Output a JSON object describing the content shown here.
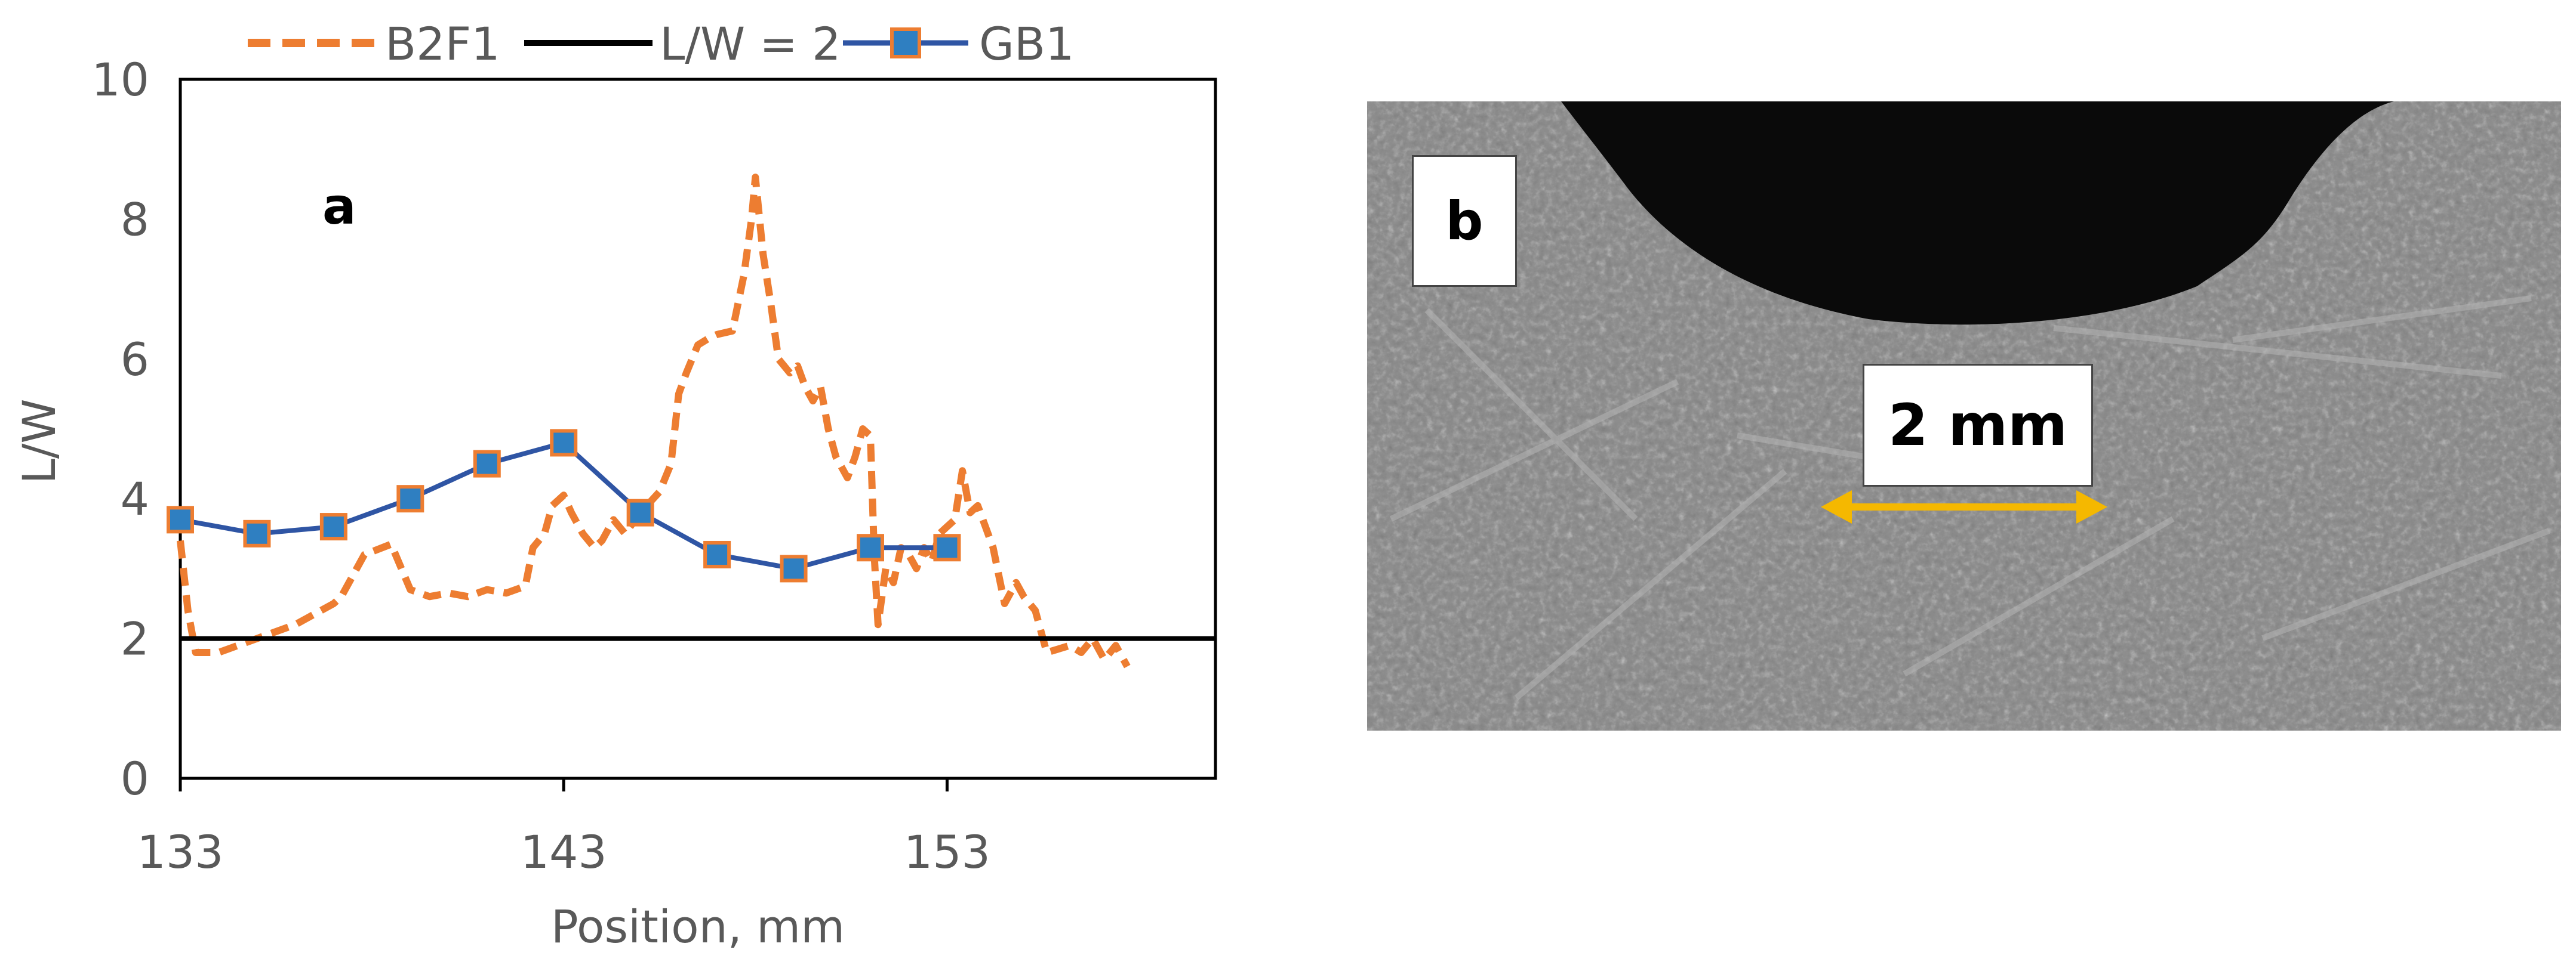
{
  "chart_data": {
    "type": "line",
    "panel_label": "a",
    "xlabel": "Position, mm",
    "ylabel": "L/W",
    "xlim": [
      133,
      160
    ],
    "ylim": [
      0,
      10
    ],
    "x_ticks": [
      133,
      143,
      153
    ],
    "y_ticks": [
      0,
      2,
      4,
      6,
      8,
      10
    ],
    "grid": false,
    "legend_position": "top",
    "series": [
      {
        "name": "B2F1",
        "style": "dashed",
        "color": "#ED7D31",
        "x": [
          133,
          133.2,
          133.4,
          134,
          135,
          136,
          137,
          137.2,
          137.8,
          138.5,
          139,
          139.5,
          140,
          140.5,
          141,
          141.5,
          142,
          142.2,
          142.5,
          142.7,
          143,
          143.2,
          143.5,
          143.8,
          144,
          144.3,
          144.6,
          145,
          145.5,
          145.8,
          146,
          146.2,
          146.5,
          146.8,
          147,
          147.4,
          147.7,
          147.9,
          148,
          148.2,
          148.4,
          148.6,
          148.9,
          149.1,
          149.3,
          149.5,
          149.7,
          149.9,
          150.1,
          150.4,
          150.6,
          150.8,
          151,
          151.1,
          151.2,
          151.4,
          151.6,
          151.8,
          152,
          152.2,
          152.4,
          152.6,
          152.8,
          153,
          153.2,
          153.4,
          153.6,
          153.8,
          154,
          154.2,
          154.5,
          154.8,
          155,
          155.3,
          155.6,
          155.9,
          156.2,
          156.5,
          156.8,
          157.1,
          157.4,
          157.7
        ],
        "y": [
          3.4,
          2.4,
          1.8,
          1.8,
          2.0,
          2.2,
          2.5,
          2.6,
          3.2,
          3.35,
          2.7,
          2.6,
          2.65,
          2.6,
          2.7,
          2.65,
          2.75,
          3.3,
          3.5,
          3.9,
          4.05,
          3.8,
          3.5,
          3.3,
          3.4,
          3.7,
          3.5,
          3.8,
          4.1,
          4.5,
          5.5,
          5.8,
          6.2,
          6.3,
          6.35,
          6.4,
          7.2,
          8.0,
          8.6,
          7.5,
          6.8,
          6.0,
          5.8,
          5.9,
          5.6,
          5.4,
          5.6,
          5.0,
          4.6,
          4.3,
          4.6,
          5.0,
          4.9,
          3.2,
          2.2,
          3.0,
          2.8,
          3.3,
          3.2,
          3.0,
          3.3,
          3.1,
          3.5,
          3.6,
          3.7,
          4.4,
          3.8,
          3.9,
          3.6,
          3.3,
          2.5,
          2.8,
          2.6,
          2.4,
          1.8,
          1.85,
          1.9,
          1.8,
          2.0,
          1.7,
          1.9,
          1.6
        ]
      },
      {
        "name": "L/W = 2",
        "style": "solid",
        "color": "#000000",
        "x": [
          133,
          160
        ],
        "y": [
          2,
          2
        ]
      },
      {
        "name": "GB1",
        "style": "solid-square-markers",
        "color": "#2F55A4",
        "marker_fill": "#2F7FC1",
        "marker_edge": "#ED7D31",
        "x": [
          133,
          135,
          137,
          139,
          141,
          143,
          145,
          147,
          149,
          151,
          153
        ],
        "y": [
          3.7,
          3.5,
          3.6,
          4.0,
          4.5,
          4.8,
          3.8,
          3.2,
          3.0,
          3.3,
          3.3
        ]
      }
    ]
  },
  "micrograph": {
    "panel_label": "b",
    "scale_bar_label": "2 mm",
    "scale_bar_color": "#F5B800",
    "background_color": "#8E8E8E",
    "cavity_color": "#0A0A0A"
  }
}
